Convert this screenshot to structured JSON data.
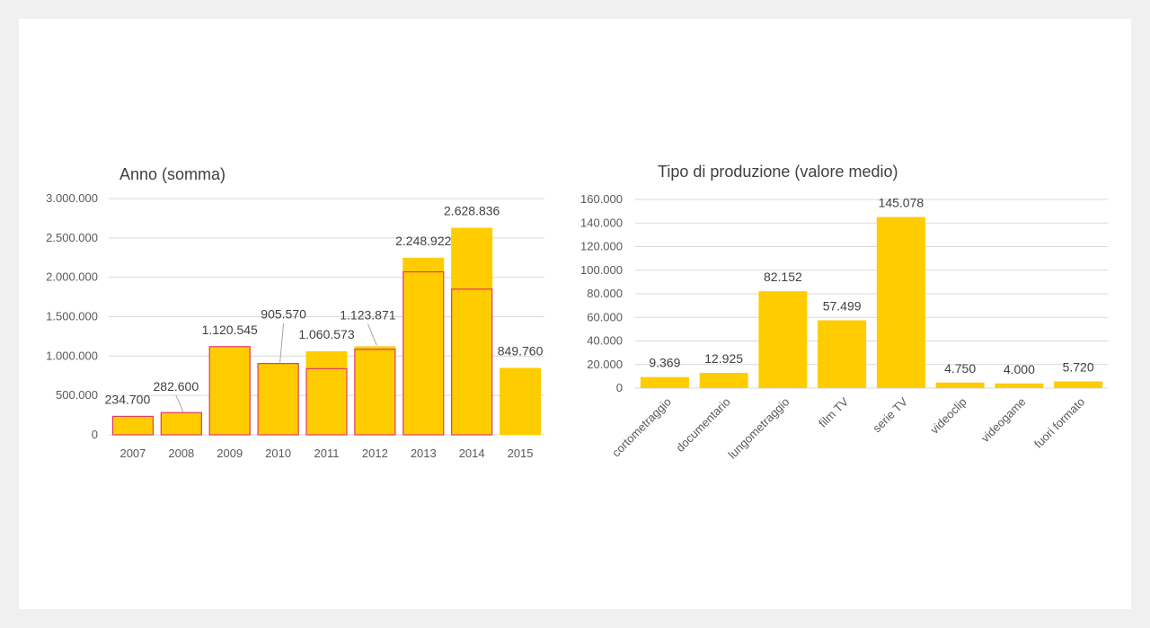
{
  "colors": {
    "bar": "#ffcc00",
    "outline": "#e23a6b",
    "grid": "#d9d9d9",
    "text": "#404040"
  },
  "chart_data": [
    {
      "type": "bar",
      "title": "Anno (somma)",
      "xlabel": "",
      "ylabel": "",
      "ylim": [
        0,
        3000000
      ],
      "grid": true,
      "y_ticks": [
        "0",
        "500.000",
        "1.000.000",
        "1.500.000",
        "2.000.000",
        "2.500.000",
        "3.000.000"
      ],
      "categories": [
        "2007",
        "2008",
        "2009",
        "2010",
        "2011",
        "2012",
        "2013",
        "2014",
        "2015"
      ],
      "values": [
        234700,
        282600,
        1120545,
        905570,
        1060573,
        1123871,
        2248922,
        2628836,
        849760
      ],
      "outlined_values": [
        234700,
        282600,
        1120545,
        905570,
        840000,
        1085000,
        2070000,
        1850000,
        null
      ],
      "data_labels": [
        "234.700",
        "282.600",
        "1.120.545",
        "905.570",
        "1.060.573",
        "1.123.871",
        "2.248.922",
        "2.628.836",
        "849.760"
      ]
    },
    {
      "type": "bar",
      "title": "Tipo di produzione (valore medio)",
      "xlabel": "",
      "ylabel": "",
      "ylim": [
        0,
        160000
      ],
      "grid": true,
      "y_ticks": [
        "0",
        "20.000",
        "40.000",
        "60.000",
        "80.000",
        "100.000",
        "120.000",
        "140.000",
        "160.000"
      ],
      "categories": [
        "cortometraggio",
        "documentario",
        "lungometraggio",
        "film TV",
        "serie TV",
        "videoclip",
        "videogame",
        "fuori formato"
      ],
      "values": [
        9369,
        12925,
        82152,
        57499,
        145078,
        4750,
        4000,
        5720
      ],
      "data_labels": [
        "9.369",
        "12.925",
        "82.152",
        "57.499",
        "145.078",
        "4.750",
        "4.000",
        "5.720"
      ]
    }
  ]
}
